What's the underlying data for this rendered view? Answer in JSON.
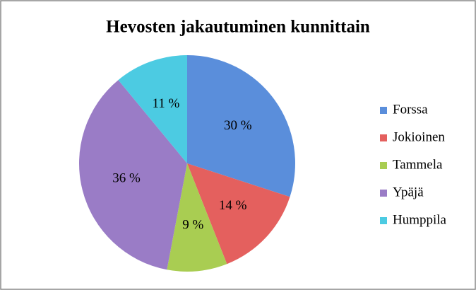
{
  "chart_data": {
    "type": "pie",
    "title": "Hevosten jakautuminen kunnittain",
    "categories": [
      "Forssa",
      "Jokioinen",
      "Tammela",
      "Ypäjä",
      "Humppila"
    ],
    "values": [
      30,
      14,
      9,
      36,
      11
    ],
    "value_labels": [
      "30 %",
      "14 %",
      "9 %",
      "36 %",
      "11 %"
    ],
    "colors": [
      "#5a8edb",
      "#e4605e",
      "#a9cd52",
      "#9a7cc6",
      "#4ccbe2"
    ],
    "legend": "right"
  }
}
